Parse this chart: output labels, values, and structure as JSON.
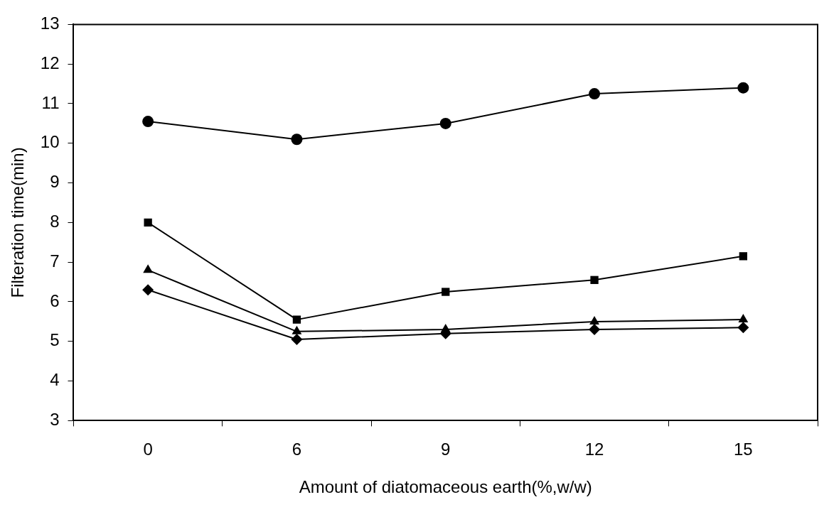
{
  "chart_data": {
    "type": "line",
    "xlabel": "Amount of diatomaceous earth(%,w/w)",
    "ylabel": "Filteration time(min)",
    "categories": [
      "0",
      "6",
      "9",
      "12",
      "15"
    ],
    "ylim": [
      3,
      13
    ],
    "yticks": [
      3,
      4,
      5,
      6,
      7,
      8,
      9,
      10,
      11,
      12,
      13
    ],
    "grid": false,
    "legend": false,
    "line_style": "solid",
    "series": [
      {
        "color": "#000000",
        "marker": "circle",
        "values": [
          10.55,
          10.1,
          10.5,
          11.25,
          11.4
        ]
      },
      {
        "color": "#000000",
        "marker": "square",
        "values": [
          8.0,
          5.55,
          6.25,
          6.55,
          7.15
        ]
      },
      {
        "color": "#000000",
        "marker": "triangle",
        "values": [
          6.8,
          5.25,
          5.3,
          5.5,
          5.55
        ]
      },
      {
        "color": "#000000",
        "marker": "diamond",
        "values": [
          6.3,
          5.05,
          5.2,
          5.3,
          5.35
        ]
      }
    ]
  }
}
